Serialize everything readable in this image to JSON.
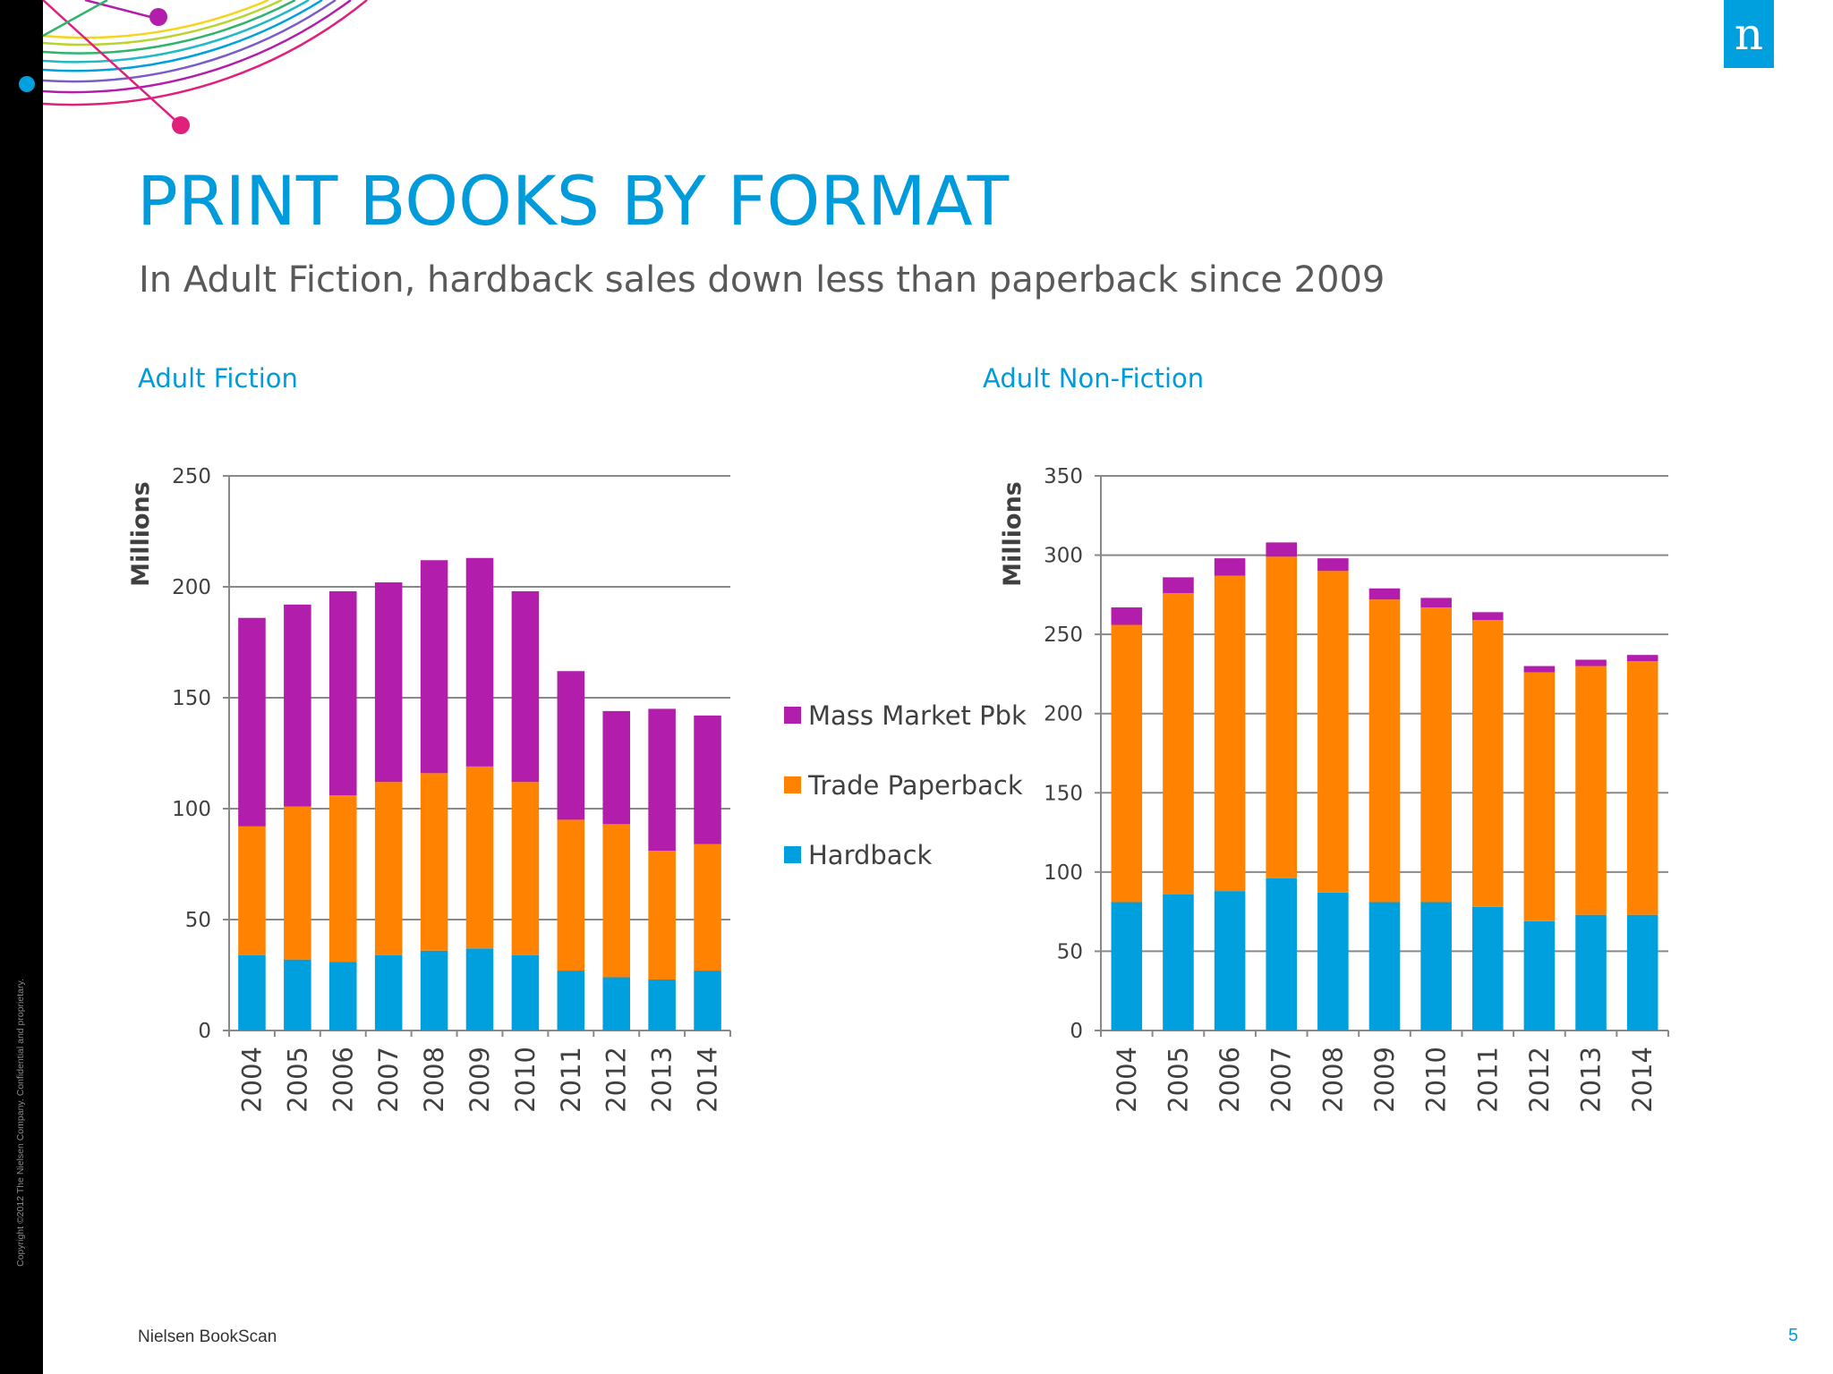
{
  "slide": {
    "title": "PRINT BOOKS BY FORMAT",
    "subtitle": "In Adult Fiction, hardback sales down less than paperback since 2009",
    "copyright": "Copyright ©2012 The Nielsen Company. Confidential and proprietary.",
    "source": "Nielsen BookScan",
    "page_number": "5",
    "logo_text": "n"
  },
  "colors": {
    "accent": "#009bdb",
    "hardback": "#00a0de",
    "trade_paperback": "#ff8200",
    "mass_market_pbk": "#b21eab"
  },
  "chart_data": [
    {
      "type": "bar",
      "stacked": true,
      "title": "Adult Fiction",
      "xlabel": "",
      "ylabel": "Millions",
      "ylim": [
        0,
        250
      ],
      "yticks": [
        0,
        50,
        100,
        150,
        200,
        250
      ],
      "categories": [
        "2004",
        "2005",
        "2006",
        "2007",
        "2008",
        "2009",
        "2010",
        "2011",
        "2012",
        "2013",
        "2014"
      ],
      "legend": {
        "position": "right",
        "order": [
          "Mass Market Pbk",
          "Trade Paperback",
          "Hardback"
        ]
      },
      "series": [
        {
          "name": "Hardback",
          "color": "#00a0de",
          "values": [
            34,
            32,
            31,
            34,
            36,
            37,
            34,
            27,
            24,
            23,
            27
          ]
        },
        {
          "name": "Trade Paperback",
          "color": "#ff8200",
          "values": [
            58,
            69,
            75,
            78,
            80,
            82,
            78,
            68,
            69,
            58,
            57
          ]
        },
        {
          "name": "Mass Market Pbk",
          "color": "#b21eab",
          "values": [
            94,
            91,
            92,
            90,
            96,
            94,
            86,
            67,
            51,
            64,
            58
          ]
        }
      ]
    },
    {
      "type": "bar",
      "stacked": true,
      "title": "Adult Non-Fiction",
      "xlabel": "",
      "ylabel": "Millions",
      "ylim": [
        0,
        350
      ],
      "yticks": [
        0,
        50,
        100,
        150,
        200,
        250,
        300,
        350
      ],
      "categories": [
        "2004",
        "2005",
        "2006",
        "2007",
        "2008",
        "2009",
        "2010",
        "2011",
        "2012",
        "2013",
        "2014"
      ],
      "series": [
        {
          "name": "Hardback",
          "color": "#00a0de",
          "values": [
            81,
            86,
            88,
            96,
            87,
            81,
            81,
            78,
            69,
            73,
            73
          ]
        },
        {
          "name": "Trade Paperback",
          "color": "#ff8200",
          "values": [
            175,
            190,
            199,
            203,
            203,
            191,
            186,
            181,
            157,
            157,
            160
          ]
        },
        {
          "name": "Mass Market Pbk",
          "color": "#b21eab",
          "values": [
            11,
            10,
            11,
            9,
            8,
            7,
            6,
            5,
            4,
            4,
            4
          ]
        }
      ]
    }
  ]
}
